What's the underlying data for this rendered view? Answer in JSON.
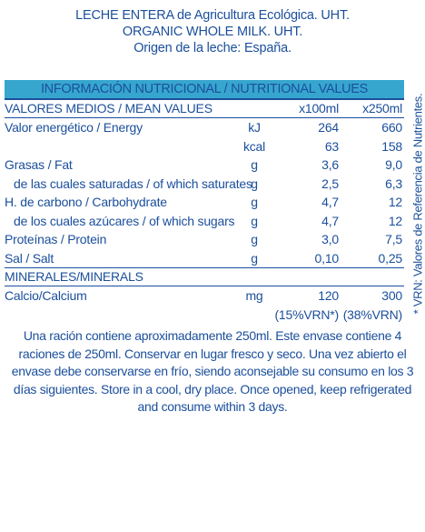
{
  "header": {
    "line1": "LECHE ENTERA de Agricultura Ecológica. UHT.",
    "line2": "ORGANIC WHOLE MILK. UHT.",
    "line3": "Origen de la leche: España."
  },
  "table": {
    "title": "INFORMACIÓN NUTRICIONAL / NUTRITIONAL VALUES",
    "header": {
      "label": "VALORES MEDIOS / MEAN VALUES",
      "col1": "x100ml",
      "col2": "x250ml"
    },
    "rows": [
      {
        "label": "Valor energético / Energy",
        "unit": "kJ",
        "v100": "264",
        "v250": "660"
      },
      {
        "label": "",
        "unit": "kcal",
        "v100": "63",
        "v250": "158"
      },
      {
        "label": "Grasas / Fat",
        "unit": "g",
        "v100": "3,6",
        "v250": "9,0"
      },
      {
        "label": "de las cuales saturadas  / of which saturates",
        "unit": "g",
        "v100": "2,5",
        "v250": "6,3"
      },
      {
        "label": "H. de carbono / Carbohydrate",
        "unit": "g",
        "v100": "4,7",
        "v250": "12"
      },
      {
        "label": "de los cuales azúcares  / of which sugars",
        "unit": "g",
        "v100": "4,7",
        "v250": "12"
      },
      {
        "label": "Proteínas / Protein",
        "unit": "g",
        "v100": "3,0",
        "v250": "7,5"
      },
      {
        "label": "Sal / Salt",
        "unit": "g",
        "v100": "0,10",
        "v250": "0,25"
      }
    ],
    "minerals_header": "MINERALES/MINERALS",
    "calcium": {
      "label": "Calcio/Calcium",
      "unit": "mg",
      "v100": "120",
      "v250": "300",
      "pct100": "(15%VRN*)",
      "pct250": "(38%VRN)"
    }
  },
  "side_note": "* VRN: Valores de Referencia de Nutrientes.",
  "footer": {
    "line1": "Una ración contiene aproximadamente 250ml. Este envase contiene 4",
    "line2": "raciones de 250ml. Conservar en lugar fresco y seco. Una vez abierto el",
    "line3": "envase debe conservarse en frío, siendo aconsejable su consumo en los 3",
    "line4": "días siguientes. Store in a cool, dry place. Once opened, keep refrigerated",
    "line5": "and consume within 3 days."
  },
  "colors": {
    "text": "#1b4f9c",
    "band": "#37a6cf",
    "background": "#ffffff"
  }
}
